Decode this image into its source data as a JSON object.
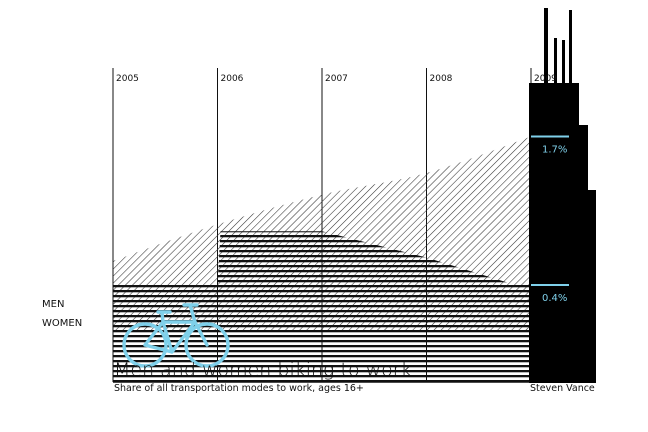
{
  "chart_data": {
    "type": "area",
    "title": "Men and women biking to work",
    "subtitle": "Share of all transportation modes to work, ages 16+",
    "credit": "Steven Vance",
    "x": [
      "2005",
      "2006",
      "2007",
      "2008",
      "2009"
    ],
    "series": [
      {
        "name": "MEN",
        "values": [
          0.61,
          0.93,
          1.19,
          1.38,
          1.7
        ],
        "label_end": "1.7%",
        "fill": "diagonal-hatch"
      },
      {
        "name": "WOMEN",
        "values": [
          0.4,
          0.87,
          0.87,
          0.64,
          0.4
        ],
        "label_end": "0.4%",
        "fill": "horizontal-stripes"
      }
    ],
    "ylim": [
      -0.45,
      2.3
    ],
    "grid": "vertical-year-lines",
    "colors": {
      "ink": "#111111",
      "accent": "#7fd0ea",
      "background": "#ffffff"
    },
    "decorations": [
      "bicycle-icon",
      "tower-silhouette"
    ]
  }
}
